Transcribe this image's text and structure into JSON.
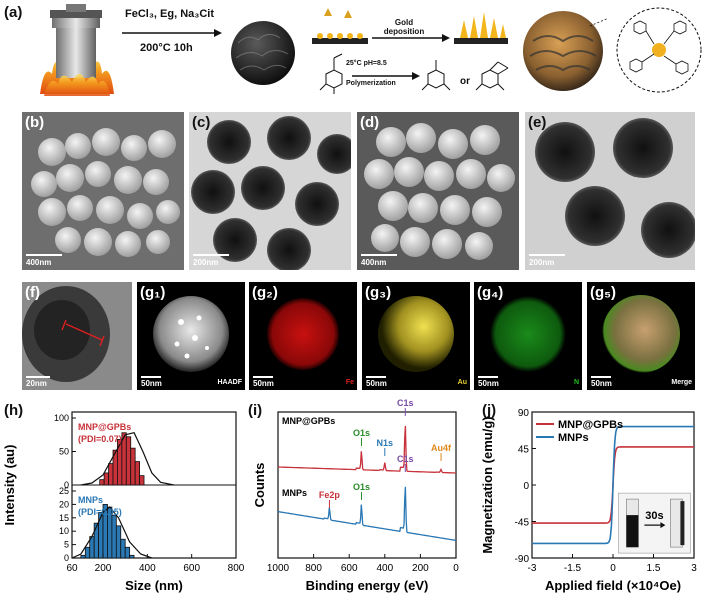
{
  "panels": {
    "a": {
      "label": "(a)",
      "reagents": "FeCl₃, Eg, Na₃Cit",
      "conditions": "200°C 10h",
      "gold_step": "Gold deposition",
      "poly_conditions": "25°C pH=8.5",
      "poly_step": "Polymerization",
      "or_text": "or"
    },
    "b": {
      "label": "(b)",
      "scale": "400nm"
    },
    "c": {
      "label": "(c)",
      "scale": "200nm"
    },
    "d": {
      "label": "(d)",
      "scale": "400nm"
    },
    "e": {
      "label": "(e)",
      "scale": "200nm"
    },
    "f": {
      "label": "(f)",
      "scale": "20nm"
    },
    "g1": {
      "label": "(g₁)",
      "scale": "50nm",
      "tag": "HAADF"
    },
    "g2": {
      "label": "(g₂)",
      "scale": "50nm",
      "tag": "Fe"
    },
    "g3": {
      "label": "(g₃)",
      "scale": "50nm",
      "tag": "Au"
    },
    "g4": {
      "label": "(g₄)",
      "scale": "50nm",
      "tag": "N"
    },
    "g5": {
      "label": "(g₅)",
      "scale": "50nm",
      "tag": "Merge"
    },
    "h": {
      "label": "(h)"
    },
    "i": {
      "label": "(i)"
    },
    "j": {
      "label": "(j)",
      "inset_time": "30s"
    }
  },
  "colors": {
    "red": "#c8323a",
    "blue": "#2a78b4",
    "green": "#2a8c2a",
    "purple": "#7a4aa8",
    "orange": "#e08a1c",
    "iron_map": "#d01010",
    "gold_map": "#e8d030",
    "nitrogen_map": "#20b020"
  },
  "chart_data": [
    {
      "id": "h",
      "type": "bar",
      "xlabel": "Size (nm)",
      "ylabel": "Intensity (au)",
      "xlim": [
        60,
        800
      ],
      "xticks": [
        60,
        200,
        400,
        600,
        800
      ],
      "series": [
        {
          "name": "MNP@GPBs",
          "pdi": "(PDI=0.07)",
          "color": "#c8323a",
          "ylim": [
            0,
            100
          ],
          "yticks": [
            0,
            50,
            100
          ],
          "x": [
            195,
            215,
            235,
            255,
            275,
            295,
            315,
            335,
            355,
            375
          ],
          "values": [
            8,
            18,
            32,
            52,
            68,
            78,
            72,
            55,
            35,
            14
          ],
          "fit": [
            [
              100,
              0
            ],
            [
              150,
              3
            ],
            [
              200,
              15
            ],
            [
              250,
              45
            ],
            [
              300,
              75
            ],
            [
              340,
              78
            ],
            [
              380,
              50
            ],
            [
              420,
              18
            ],
            [
              460,
              4
            ],
            [
              520,
              0
            ]
          ]
        },
        {
          "name": "MNPs",
          "pdi": "(PDI=0.05)",
          "color": "#2a78b4",
          "ylim": [
            0,
            25
          ],
          "yticks": [
            0,
            5,
            10,
            15,
            20,
            25
          ],
          "x": [
            110,
            130,
            150,
            170,
            190,
            210,
            230,
            250,
            270,
            290,
            310,
            330
          ],
          "values": [
            1,
            4,
            8,
            13,
            17,
            20,
            19,
            16,
            12,
            7,
            4,
            1
          ],
          "fit": [
            [
              60,
              0
            ],
            [
              100,
              1.5
            ],
            [
              150,
              8
            ],
            [
              200,
              17
            ],
            [
              230,
              19
            ],
            [
              270,
              15
            ],
            [
              320,
              6
            ],
            [
              370,
              1.5
            ],
            [
              420,
              0
            ]
          ]
        }
      ]
    },
    {
      "id": "i",
      "type": "line",
      "xlabel": "Binding energy (eV)",
      "ylabel": "Counts",
      "xlim": [
        1000,
        0
      ],
      "xticks": [
        1000,
        800,
        600,
        400,
        200,
        0
      ],
      "series": [
        {
          "name": "MNP@GPBs",
          "color": "#c8323a",
          "peaks": [
            {
              "label": "O1s",
              "x": 531,
              "color": "#2a8c2a"
            },
            {
              "label": "N1s",
              "x": 400,
              "color": "#2a78b4"
            },
            {
              "label": "C1s",
              "x": 285,
              "color": "#7a4aa8"
            },
            {
              "label": "Au4f",
              "x": 84,
              "color": "#e08a1c"
            }
          ]
        },
        {
          "name": "MNPs",
          "color": "#2a78b4",
          "peaks": [
            {
              "label": "Fe2p",
              "x": 711,
              "color": "#c8323a"
            },
            {
              "label": "O1s",
              "x": 531,
              "color": "#2a8c2a"
            },
            {
              "label": "C1s",
              "x": 285,
              "color": "#7a4aa8"
            }
          ]
        }
      ]
    },
    {
      "id": "j",
      "type": "line",
      "xlabel": "Applied field (×10⁴Oe)",
      "ylabel": "Magnetization (emu/g)",
      "xlim": [
        -3,
        3
      ],
      "ylim": [
        -90,
        90
      ],
      "xticks": [
        -3,
        -1.5,
        0,
        1.5,
        3
      ],
      "yticks": [
        -90,
        -45,
        0,
        45,
        90
      ],
      "series": [
        {
          "name": "MNP@GPBs",
          "color": "#c8323a",
          "ms": 47
        },
        {
          "name": "MNPs",
          "color": "#2a78b4",
          "ms": 72
        }
      ]
    }
  ]
}
